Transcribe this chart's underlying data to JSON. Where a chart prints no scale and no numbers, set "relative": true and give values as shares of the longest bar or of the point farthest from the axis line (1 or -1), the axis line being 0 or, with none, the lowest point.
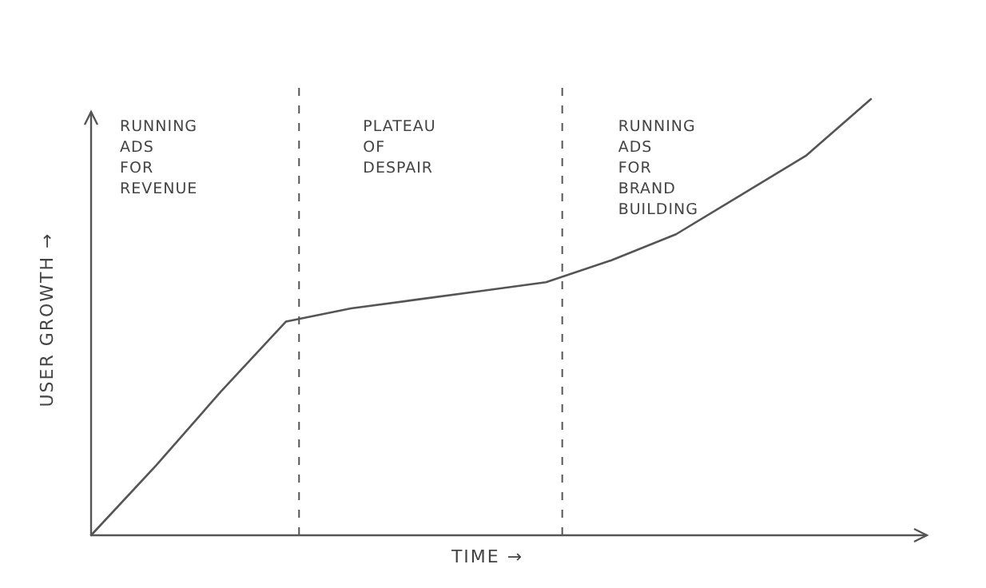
{
  "chart_data": {
    "type": "line",
    "relative": true,
    "xlabel": "TIME →",
    "ylabel": "USER GROWTH →",
    "categories": [
      null,
      null,
      null,
      null,
      null,
      null,
      null,
      null,
      null,
      null,
      null,
      null,
      null
    ],
    "series": [
      {
        "color": "#555555",
        "values": [
          0,
          0.16,
          0.33,
          0.49,
          0.52,
          0.54,
          0.56,
          0.58,
          0.63,
          0.69,
          0.78,
          0.87,
          1
        ]
      }
    ],
    "line_style": "solid",
    "annotations": [
      "RUNNING ADS FOR REVENUE",
      "PLATEAU OF DESPAIR",
      "RUNNING ADS FOR BRAND BUILDING"
    ]
  }
}
